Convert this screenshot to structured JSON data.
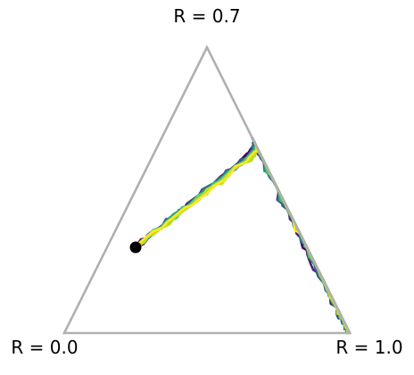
{
  "chart_data": {
    "type": "scatter",
    "projection": "ternary",
    "vertices": [
      {
        "label": "R = 0.7",
        "position": "top"
      },
      {
        "label": "R = 0.0",
        "position": "bottom-left"
      },
      {
        "label": "R = 1.0",
        "position": "bottom-right"
      }
    ],
    "start_point": {
      "top": 0.3,
      "right": 0.1
    },
    "colormap": "viridis",
    "colormap_stops": [
      "#440154",
      "#482475",
      "#414487",
      "#355f8d",
      "#2a788e",
      "#21918c",
      "#22a884",
      "#44bf70",
      "#7ad151",
      "#bddf26",
      "#fde725"
    ],
    "trajectories": {
      "count": 16,
      "ridge": [
        [
          0.3,
          0.1
        ],
        [
          0.37,
          0.15
        ],
        [
          0.45,
          0.21
        ],
        [
          0.54,
          0.27
        ],
        [
          0.62,
          0.33
        ],
        [
          0.67,
          0.34
        ],
        [
          0.68,
          0.33
        ],
        [
          0.66,
          0.34
        ],
        [
          0.58,
          0.42
        ],
        [
          0.48,
          0.52
        ],
        [
          0.38,
          0.62
        ],
        [
          0.28,
          0.72
        ],
        [
          0.18,
          0.82
        ],
        [
          0.09,
          0.91
        ],
        [
          0.03,
          0.97
        ],
        [
          0.0,
          1.0
        ]
      ]
    },
    "axis_color": "#b0b0b0",
    "marker_color": "#000000",
    "grid": false,
    "legend": "none"
  }
}
